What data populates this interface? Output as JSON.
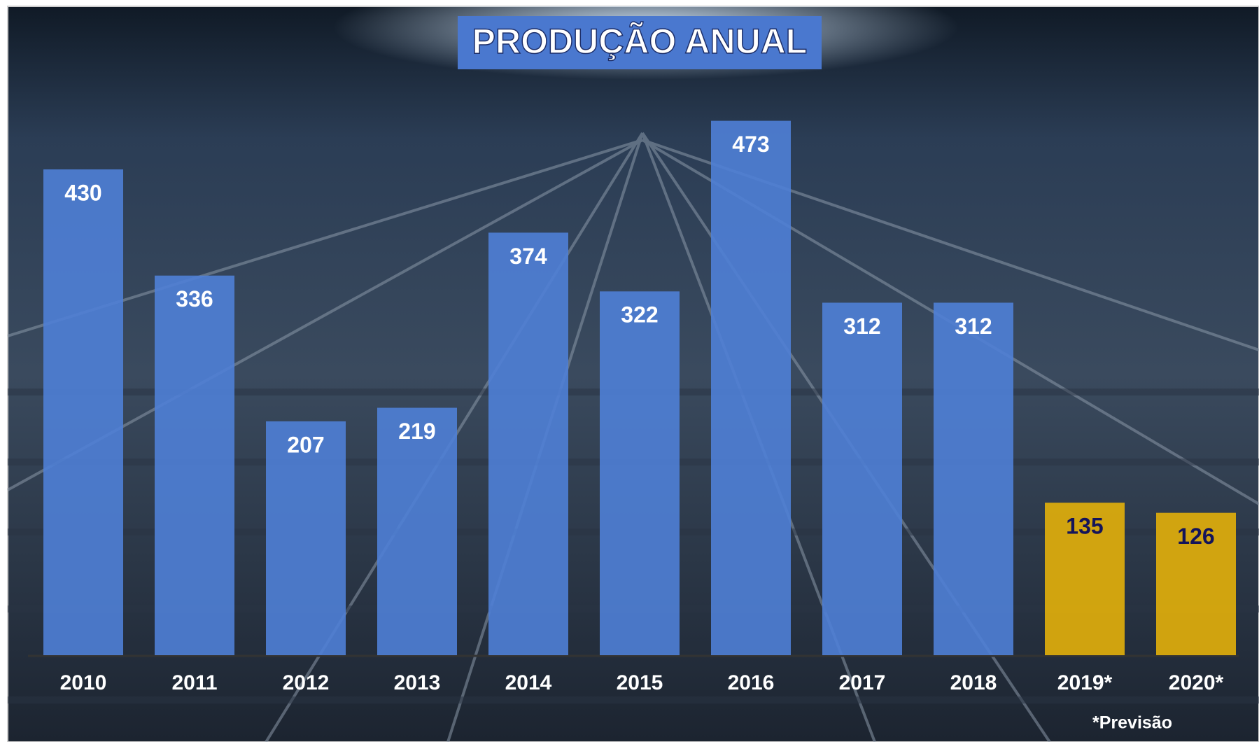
{
  "chart_data": {
    "type": "bar",
    "title": "PRODUÇÃO ANUAL",
    "categories": [
      "2010",
      "2011",
      "2012",
      "2013",
      "2014",
      "2015",
      "2016",
      "2017",
      "2018",
      "2019*",
      "2020*"
    ],
    "values": [
      430,
      336,
      207,
      219,
      374,
      322,
      473,
      312,
      312,
      135,
      126
    ],
    "colors": [
      "#4f7fd6",
      "#4f7fd6",
      "#4f7fd6",
      "#4f7fd6",
      "#4f7fd6",
      "#4f7fd6",
      "#4f7fd6",
      "#4f7fd6",
      "#4f7fd6",
      "#e3b00a",
      "#e3b00a"
    ],
    "label_colors": [
      "#ffffff",
      "#ffffff",
      "#ffffff",
      "#ffffff",
      "#ffffff",
      "#ffffff",
      "#ffffff",
      "#ffffff",
      "#ffffff",
      "#14145a",
      "#14145a"
    ],
    "note": "*Previsão"
  }
}
